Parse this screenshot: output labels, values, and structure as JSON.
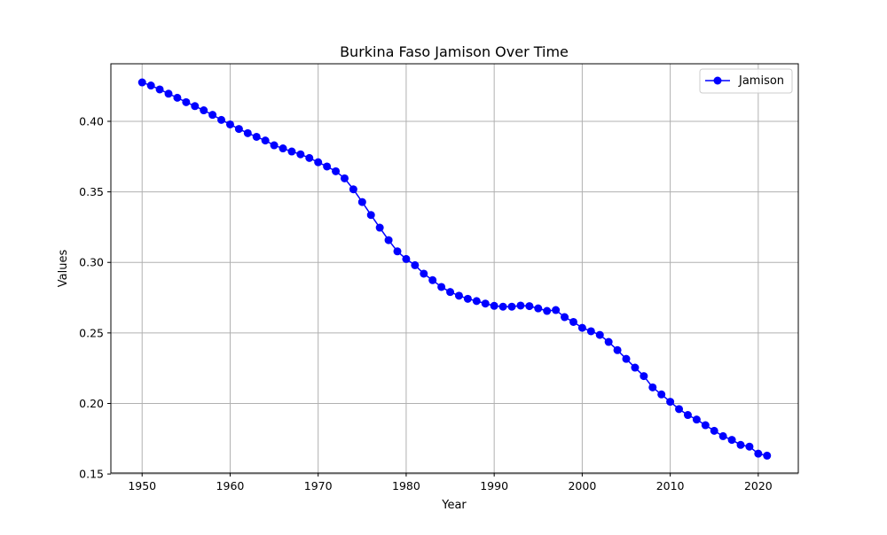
{
  "chart_data": {
    "type": "line",
    "title": "Burkina Faso Jamison Over Time",
    "xlabel": "Year",
    "ylabel": "Values",
    "xlim": [
      1946.45,
      2024.55
    ],
    "ylim": [
      0.1507,
      0.4408
    ],
    "xticks": [
      1950,
      1960,
      1970,
      1980,
      1990,
      2000,
      2010,
      2020
    ],
    "xtick_labels": [
      "1950",
      "1960",
      "1970",
      "1980",
      "1990",
      "2000",
      "2010",
      "2020"
    ],
    "yticks": [
      0.15,
      0.2,
      0.25,
      0.3,
      0.35,
      0.4
    ],
    "ytick_labels": [
      "0.15",
      "0.20",
      "0.25",
      "0.30",
      "0.35",
      "0.40"
    ],
    "grid": true,
    "legend_position": "top-right",
    "x": [
      1950,
      1951,
      1952,
      1953,
      1954,
      1955,
      1956,
      1957,
      1958,
      1959,
      1960,
      1961,
      1962,
      1963,
      1964,
      1965,
      1966,
      1967,
      1968,
      1969,
      1970,
      1971,
      1972,
      1973,
      1974,
      1975,
      1976,
      1977,
      1978,
      1979,
      1980,
      1981,
      1982,
      1983,
      1984,
      1985,
      1986,
      1987,
      1988,
      1989,
      1990,
      1991,
      1992,
      1993,
      1994,
      1995,
      1996,
      1997,
      1998,
      1999,
      2000,
      2001,
      2002,
      2003,
      2004,
      2005,
      2006,
      2007,
      2008,
      2009,
      2010,
      2011,
      2012,
      2013,
      2014,
      2015,
      2016,
      2017,
      2018,
      2019,
      2020,
      2021
    ],
    "series": [
      {
        "name": "Jamison",
        "color": "#0000ff",
        "marker": "circle",
        "values": [
          0.4276,
          0.4254,
          0.4226,
          0.4196,
          0.4167,
          0.4136,
          0.4108,
          0.4078,
          0.4046,
          0.401,
          0.3978,
          0.3946,
          0.3916,
          0.389,
          0.3864,
          0.383,
          0.3808,
          0.3786,
          0.3766,
          0.374,
          0.371,
          0.368,
          0.3646,
          0.3596,
          0.3518,
          0.3428,
          0.3336,
          0.3246,
          0.3158,
          0.3078,
          0.3024,
          0.298,
          0.292,
          0.2874,
          0.2826,
          0.279,
          0.2764,
          0.2742,
          0.2726,
          0.2708,
          0.2692,
          0.2686,
          0.2686,
          0.2694,
          0.269,
          0.2674,
          0.2656,
          0.2662,
          0.2612,
          0.2578,
          0.2536,
          0.2512,
          0.2486,
          0.2436,
          0.2378,
          0.2316,
          0.2254,
          0.2194,
          0.2114,
          0.2064,
          0.2012,
          0.196,
          0.1918,
          0.1886,
          0.1846,
          0.1806,
          0.1768,
          0.1742,
          0.1706,
          0.1694,
          0.1644,
          0.163
        ]
      }
    ]
  }
}
